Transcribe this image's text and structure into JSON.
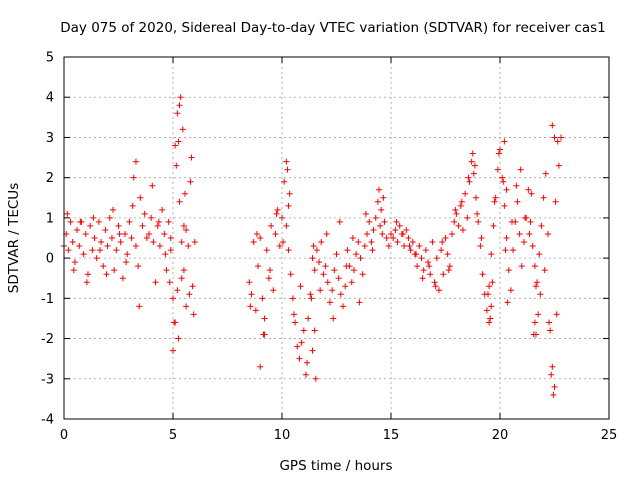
{
  "chart_data": {
    "type": "scatter",
    "title": "Day 075 of 2020, Sidereal Day-to-day VTEC variation (SDTVAR) for receiver cas1",
    "xlabel": "GPS time / hours",
    "ylabel": "SDTVAR / TECUs",
    "xlim": [
      0,
      25
    ],
    "ylim": [
      -4,
      5
    ],
    "xticks": [
      0,
      5,
      10,
      15,
      20,
      25
    ],
    "yticks": [
      -4,
      -3,
      -2,
      -1,
      0,
      1,
      2,
      3,
      4,
      5
    ],
    "xtick_labels": [
      "0",
      "5",
      "10",
      "15",
      "20",
      "25"
    ],
    "ytick_labels": [
      "-4",
      "-3",
      "-2",
      "-1",
      "0",
      "1",
      "2",
      "3",
      "4",
      "5"
    ],
    "grid": true,
    "marker": "+",
    "color": "#ff0000",
    "series": [
      {
        "name": "SDTVAR",
        "x": [
          0.0,
          0.1,
          0.2,
          0.3,
          0.4,
          0.5,
          0.6,
          0.7,
          0.8,
          0.9,
          1.0,
          1.1,
          1.2,
          1.3,
          1.4,
          1.5,
          1.6,
          1.7,
          1.8,
          1.9,
          2.0,
          2.1,
          2.2,
          2.3,
          2.4,
          2.5,
          2.6,
          2.7,
          2.8,
          2.9,
          3.0,
          3.1,
          3.2,
          3.3,
          3.4,
          3.5,
          3.6,
          3.7,
          3.8,
          3.9,
          4.0,
          4.1,
          4.2,
          4.3,
          4.4,
          4.5,
          4.6,
          4.7,
          4.8,
          4.9,
          5.0,
          5.1,
          5.2,
          5.3,
          5.4,
          5.5,
          5.6,
          5.7,
          5.8,
          5.9,
          6.0,
          0.15,
          0.45,
          0.75,
          1.05,
          1.35,
          1.65,
          1.95,
          2.25,
          2.55,
          2.85,
          3.15,
          3.3,
          3.45,
          4.05,
          4.35,
          4.65,
          4.85,
          5.05,
          5.15,
          5.25,
          5.35,
          5.45,
          5.55,
          5.75,
          5.85,
          5.95,
          5.0,
          5.1,
          5.2,
          5.3,
          5.25,
          5.4,
          5.5,
          5.6,
          4.9,
          8.5,
          8.6,
          8.7,
          8.8,
          8.9,
          9.0,
          9.1,
          9.2,
          9.3,
          9.4,
          9.5,
          9.6,
          9.7,
          9.8,
          9.9,
          10.0,
          10.1,
          10.2,
          10.3,
          10.4,
          10.5,
          10.6,
          10.7,
          10.8,
          10.9,
          11.0,
          11.1,
          11.2,
          11.3,
          11.4,
          11.5,
          11.6,
          11.7,
          11.8,
          11.9,
          12.0,
          12.1,
          12.2,
          12.3,
          12.4,
          12.5,
          12.6,
          12.7,
          12.8,
          12.9,
          13.0,
          13.1,
          13.2,
          13.3,
          13.4,
          13.5,
          13.6,
          13.7,
          13.8,
          13.9,
          14.0,
          14.1,
          14.2,
          14.3,
          14.4,
          14.5,
          14.6,
          14.7,
          14.8,
          14.9,
          15.0,
          8.55,
          8.85,
          9.15,
          9.45,
          9.75,
          10.05,
          10.25,
          10.35,
          10.55,
          10.85,
          11.15,
          11.35,
          11.45,
          11.55,
          11.75,
          12.05,
          12.35,
          12.65,
          12.95,
          13.25,
          13.55,
          13.85,
          14.15,
          14.45,
          14.55,
          14.65,
          10.2,
          10.3,
          11.4,
          11.5,
          9.0,
          9.2,
          15.1,
          15.2,
          15.3,
          15.4,
          15.5,
          15.6,
          15.7,
          15.8,
          15.9,
          16.0,
          16.1,
          16.2,
          16.3,
          16.4,
          16.5,
          16.6,
          16.7,
          16.8,
          16.9,
          17.0,
          17.1,
          17.2,
          17.3,
          17.4,
          17.5,
          17.6,
          17.7,
          17.8,
          17.9,
          18.0,
          18.1,
          18.2,
          18.3,
          18.4,
          18.5,
          18.6,
          18.7,
          18.8,
          18.9,
          19.0,
          19.1,
          19.2,
          19.3,
          19.4,
          19.5,
          19.6,
          19.7,
          19.8,
          19.9,
          20.0,
          20.1,
          20.2,
          20.3,
          20.4,
          20.5,
          20.6,
          20.7,
          20.8,
          20.9,
          21.0,
          21.1,
          21.2,
          21.3,
          21.4,
          21.5,
          21.6,
          21.7,
          21.8,
          21.9,
          22.0,
          22.1,
          22.2,
          22.3,
          22.4,
          22.5,
          22.6,
          22.7,
          22.8,
          15.25,
          15.55,
          15.85,
          16.15,
          16.45,
          16.75,
          17.05,
          17.35,
          17.65,
          17.95,
          18.25,
          18.55,
          18.75,
          18.85,
          18.95,
          19.15,
          19.45,
          19.55,
          19.65,
          19.75,
          19.95,
          20.15,
          20.25,
          20.35,
          20.55,
          20.75,
          20.95,
          21.15,
          21.35,
          21.45,
          21.55,
          21.65,
          21.75,
          21.85,
          22.05,
          22.25,
          22.35,
          22.45,
          22.55,
          22.65,
          20.2,
          20.3,
          21.6,
          21.65,
          19.5,
          19.6,
          22.4,
          22.5
        ],
        "y": [
          0.3,
          0.6,
          0.2,
          0.9,
          0.4,
          -0.1,
          0.7,
          0.3,
          0.9,
          0.1,
          0.6,
          -0.4,
          0.8,
          0.2,
          0.5,
          0.0,
          0.9,
          0.4,
          -0.2,
          0.7,
          0.3,
          1.0,
          0.5,
          -0.3,
          0.2,
          0.8,
          0.4,
          -0.5,
          0.6,
          0.1,
          0.9,
          0.5,
          2.0,
          0.3,
          -0.2,
          1.5,
          0.8,
          1.1,
          0.5,
          0.6,
          1.0,
          0.4,
          -0.6,
          0.8,
          0.3,
          1.2,
          0.6,
          -0.3,
          0.9,
          0.2,
          -1.0,
          2.8,
          3.6,
          1.4,
          -0.5,
          0.8,
          -1.2,
          0.3,
          1.9,
          -0.7,
          0.4,
          1.1,
          -0.3,
          0.9,
          -0.6,
          1.0,
          0.2,
          -0.4,
          1.2,
          0.6,
          -0.1,
          1.3,
          2.4,
          -1.2,
          1.8,
          0.9,
          0.1,
          -0.6,
          -1.6,
          2.3,
          -2.0,
          4.0,
          3.2,
          1.6,
          -0.9,
          2.5,
          -1.4,
          -2.3,
          -1.6,
          -0.8,
          3.8,
          2.9,
          0.4,
          -0.3,
          0.7,
          0.5,
          -0.6,
          -0.9,
          0.4,
          -1.3,
          -0.2,
          0.5,
          -1.0,
          -1.5,
          0.2,
          -0.5,
          0.8,
          -0.8,
          0.6,
          1.2,
          0.3,
          1.0,
          1.9,
          0.8,
          0.2,
          -0.4,
          -1.0,
          -1.6,
          -2.2,
          -2.5,
          -2.1,
          -1.8,
          -2.9,
          -1.5,
          -0.9,
          0.0,
          -0.3,
          0.2,
          -0.1,
          0.4,
          -0.4,
          -0.2,
          -0.6,
          -1.1,
          -0.8,
          -0.3,
          0.1,
          -0.5,
          -0.9,
          -1.2,
          -0.7,
          0.2,
          -0.2,
          -0.6,
          -0.3,
          0.1,
          0.4,
          0.0,
          -0.4,
          0.3,
          0.6,
          0.9,
          0.4,
          0.7,
          1.0,
          1.4,
          0.8,
          0.6,
          0.9,
          0.5,
          0.3,
          0.6,
          -1.2,
          0.6,
          -1.9,
          -0.3,
          1.1,
          0.4,
          2.2,
          1.6,
          -1.4,
          -0.7,
          -2.6,
          -1.0,
          0.3,
          -3.0,
          -0.8,
          0.6,
          -1.5,
          0.9,
          -0.2,
          0.5,
          -1.1,
          1.1,
          0.2,
          1.7,
          1.2,
          1.5,
          2.4,
          1.3,
          -2.3,
          -1.8,
          -2.7,
          -1.9,
          0.5,
          0.7,
          0.4,
          0.8,
          0.6,
          0.3,
          0.7,
          0.5,
          0.2,
          0.4,
          0.1,
          -0.2,
          0.3,
          0.0,
          -0.3,
          0.2,
          -0.1,
          -0.4,
          0.4,
          -0.6,
          0.0,
          -0.8,
          0.2,
          -0.4,
          0.5,
          0.1,
          -0.2,
          0.6,
          0.9,
          1.1,
          0.8,
          1.3,
          0.7,
          1.6,
          1.0,
          1.9,
          2.4,
          2.1,
          1.5,
          0.9,
          0.3,
          -0.4,
          -0.9,
          -1.3,
          -0.7,
          0.1,
          0.8,
          1.5,
          2.2,
          2.7,
          2.0,
          1.3,
          0.5,
          -0.3,
          -0.8,
          0.2,
          0.9,
          1.4,
          0.6,
          -0.2,
          0.4,
          1.0,
          1.7,
          0.9,
          0.3,
          -0.2,
          -0.6,
          0.1,
          0.8,
          1.5,
          2.1,
          0.6,
          -1.8,
          -2.7,
          -3.2,
          -1.4,
          2.3,
          3.0,
          0.9,
          0.6,
          0.3,
          0.1,
          -0.5,
          -0.2,
          -0.7,
          0.4,
          -0.3,
          1.2,
          1.4,
          2.0,
          2.6,
          2.3,
          1.1,
          0.5,
          -0.9,
          -1.5,
          -0.6,
          1.4,
          2.6,
          1.9,
          0.2,
          -1.1,
          0.9,
          1.8,
          2.2,
          1.0,
          0.6,
          1.6,
          -1.9,
          -0.7,
          -1.4,
          -0.9,
          -0.3,
          -1.6,
          -2.9,
          -3.4,
          1.4,
          2.9,
          2.9,
          1.7,
          -1.6,
          -1.9,
          -1.6,
          -1.2,
          3.3,
          3.0
        ]
      }
    ]
  }
}
